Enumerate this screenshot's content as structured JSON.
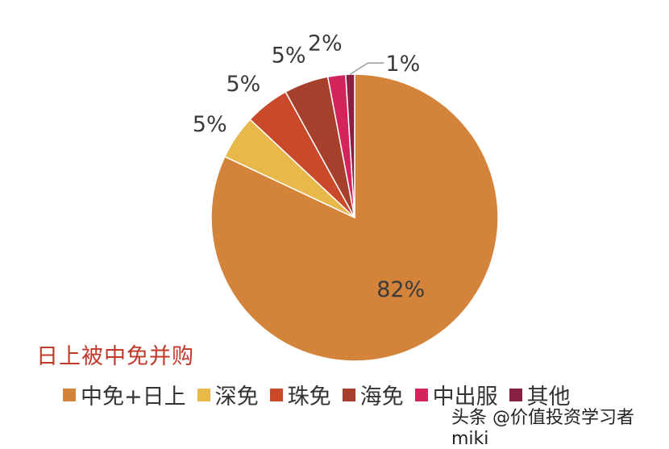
{
  "chart_data": {
    "type": "pie",
    "labels": [
      "中免+日上",
      "深免",
      "珠免",
      "海免",
      "中出服",
      "其他"
    ],
    "values": [
      82,
      5,
      5,
      5,
      2,
      1
    ],
    "data_labels": [
      "82%",
      "5%",
      "5%",
      "5%",
      "2%",
      "1%"
    ],
    "colors": [
      "#d4843a",
      "#e8b84a",
      "#c9492a",
      "#a6402c",
      "#d4245c",
      "#8a1f45"
    ],
    "start": "12 o'clock",
    "direction": "clockwise",
    "legend_position": "bottom-left"
  },
  "annotation": "日上被中免并购",
  "watermark": "头条 @价值投资学习者miki"
}
